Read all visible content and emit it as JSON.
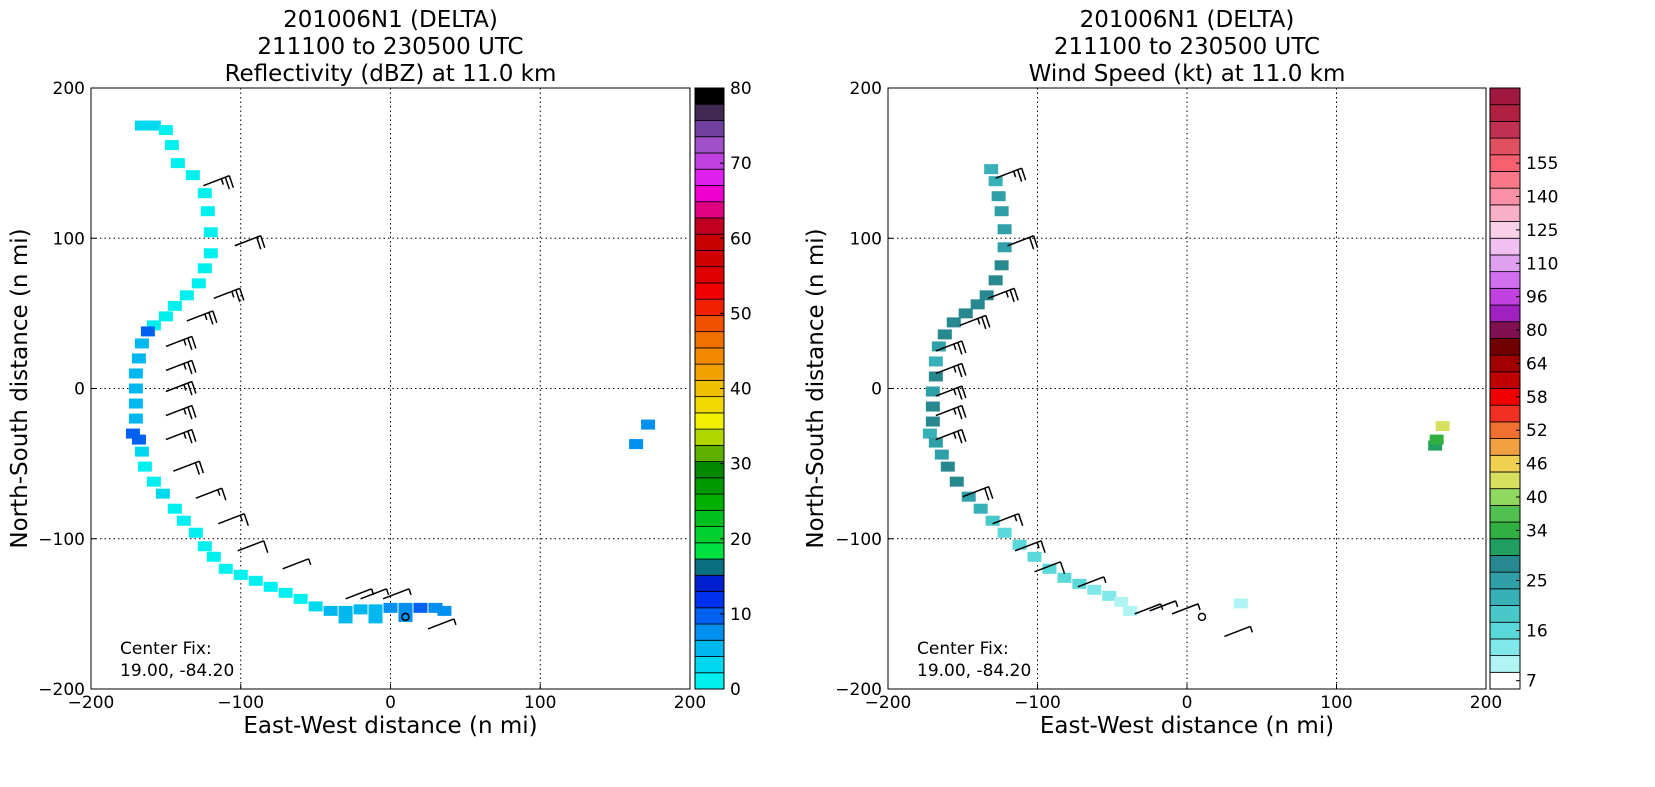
{
  "chart_data": [
    {
      "type": "heatmap",
      "title": [
        "201006N1 (DELTA)",
        "211100 to 230500 UTC",
        "Reflectivity (dBZ) at 11.0 km"
      ],
      "xlabel": "East-West distance (n mi)",
      "ylabel": "North-South distance (n mi)",
      "xlim": [
        -200,
        200
      ],
      "ylim": [
        -200,
        200
      ],
      "xticks": [
        -200,
        -100,
        0,
        100,
        200
      ],
      "yticks": [
        -200,
        -100,
        0,
        100,
        200
      ],
      "xtick_labels": [
        "−200",
        "−100",
        "0",
        "100",
        "200"
      ],
      "ytick_labels": [
        "−200",
        "−100",
        "0",
        "100",
        "200"
      ],
      "grid": true,
      "annotation": [
        "Center Fix:",
        "19.00, -84.20"
      ],
      "center_fix": [
        10,
        -152
      ],
      "colorbar": {
        "min": 0,
        "max": 80,
        "step": 2.5,
        "tick_values": [
          0,
          10,
          20,
          30,
          40,
          50,
          60,
          70,
          80
        ],
        "tick_labels": [
          "0",
          "10",
          "20",
          "30",
          "40",
          "50",
          "60",
          "70",
          "80"
        ],
        "colors": [
          "#00f0f0",
          "#00d8f0",
          "#00b8f0",
          "#0090f0",
          "#0060f0",
          "#0030f0",
          "#0020d0",
          "#087080",
          "#00e040",
          "#00d030",
          "#00c020",
          "#00b000",
          "#009800",
          "#008800",
          "#60b000",
          "#b0d800",
          "#f0f000",
          "#f0d800",
          "#f0c000",
          "#f0a000",
          "#f08800",
          "#f07000",
          "#f05000",
          "#f02000",
          "#f00000",
          "#e00000",
          "#d00000",
          "#c80000",
          "#c00020",
          "#e00080",
          "#f000d0",
          "#e020f0",
          "#c040e0",
          "#a050c8",
          "#7040a0",
          "#402850",
          "#000000"
        ]
      },
      "cells": [
        [
          -166,
          175,
          "#00d8f0"
        ],
        [
          -158,
          175,
          "#00d8f0"
        ],
        [
          -150,
          172,
          "#00f0f0"
        ],
        [
          -146,
          162,
          "#00f0f0"
        ],
        [
          -142,
          150,
          "#00f0f0"
        ],
        [
          -132,
          142,
          "#00f0f0"
        ],
        [
          -124,
          130,
          "#00f0f0"
        ],
        [
          -122,
          118,
          "#00f0f0"
        ],
        [
          -120,
          104,
          "#00f0f0"
        ],
        [
          -120,
          90,
          "#00f0f0"
        ],
        [
          -124,
          80,
          "#00f0f0"
        ],
        [
          -128,
          70,
          "#00f0f0"
        ],
        [
          -136,
          62,
          "#00f0f0"
        ],
        [
          -144,
          55,
          "#00f0f0"
        ],
        [
          -150,
          48,
          "#00f0f0"
        ],
        [
          -158,
          42,
          "#00f0f0"
        ],
        [
          -162,
          38,
          "#0060f0"
        ],
        [
          -166,
          30,
          "#00b8f0"
        ],
        [
          -168,
          20,
          "#00b8f0"
        ],
        [
          -170,
          10,
          "#00b8f0"
        ],
        [
          -170,
          0,
          "#00b8f0"
        ],
        [
          -170,
          -10,
          "#00b8f0"
        ],
        [
          -170,
          -20,
          "#00b8f0"
        ],
        [
          -172,
          -30,
          "#0060f0"
        ],
        [
          -168,
          -34,
          "#0060f0"
        ],
        [
          -166,
          -42,
          "#00d8f0"
        ],
        [
          -164,
          -52,
          "#00f0f0"
        ],
        [
          -158,
          -62,
          "#00f0f0"
        ],
        [
          -152,
          -70,
          "#00d8f0"
        ],
        [
          -144,
          -80,
          "#00f0f0"
        ],
        [
          -138,
          -88,
          "#00f0f0"
        ],
        [
          -130,
          -96,
          "#00f0f0"
        ],
        [
          -124,
          -105,
          "#00f0f0"
        ],
        [
          -118,
          -112,
          "#00f0f0"
        ],
        [
          -110,
          -120,
          "#00f0f0"
        ],
        [
          -100,
          -124,
          "#00f0f0"
        ],
        [
          -90,
          -128,
          "#00f0f0"
        ],
        [
          -80,
          -132,
          "#00f0f0"
        ],
        [
          -70,
          -136,
          "#00f0f0"
        ],
        [
          -60,
          -140,
          "#00f0f0"
        ],
        [
          -50,
          -145,
          "#00d8f0"
        ],
        [
          -40,
          -148,
          "#00b8f0"
        ],
        [
          -30,
          -148,
          "#00b8f0"
        ],
        [
          -20,
          -147,
          "#00b8f0"
        ],
        [
          -10,
          -147,
          "#00b8f0"
        ],
        [
          0,
          -146,
          "#0090f0"
        ],
        [
          10,
          -146,
          "#0090f0"
        ],
        [
          20,
          -146,
          "#0060f0"
        ],
        [
          30,
          -146,
          "#0090f0"
        ],
        [
          36,
          -148,
          "#0090f0"
        ],
        [
          -30,
          -153,
          "#00b8f0"
        ],
        [
          -10,
          -153,
          "#00b8f0"
        ],
        [
          10,
          -152,
          "#0090f0"
        ],
        [
          164,
          -37,
          "#0090f0"
        ],
        [
          172,
          -24,
          "#0090f0"
        ]
      ],
      "barbs": [
        [
          -125,
          135,
          "2.5"
        ],
        [
          -104,
          95,
          "2"
        ],
        [
          -118,
          60,
          "2.5"
        ],
        [
          -136,
          45,
          "2.5"
        ],
        [
          -150,
          28,
          "2.5"
        ],
        [
          -150,
          12,
          "2.5"
        ],
        [
          -150,
          -2,
          "2.5"
        ],
        [
          -150,
          -18,
          "2.5"
        ],
        [
          -150,
          -34,
          "2.5"
        ],
        [
          -145,
          -55,
          "2"
        ],
        [
          -130,
          -73,
          "1.5"
        ],
        [
          -115,
          -90,
          "1.5"
        ],
        [
          -102,
          -108,
          "1"
        ],
        [
          -72,
          -120,
          "0.5"
        ],
        [
          -30,
          -140,
          "0.5"
        ],
        [
          -20,
          -140,
          "0.5"
        ],
        [
          -5,
          -140,
          "0.5"
        ],
        [
          25,
          -160,
          "0.5"
        ]
      ]
    },
    {
      "type": "heatmap",
      "title": [
        "201006N1 (DELTA)",
        "211100 to 230500 UTC",
        "Wind Speed (kt) at 11.0 km"
      ],
      "xlabel": "East-West distance (n mi)",
      "ylabel": "North-South distance (n mi)",
      "xlim": [
        -200,
        200
      ],
      "ylim": [
        -200,
        200
      ],
      "xticks": [
        -200,
        -100,
        0,
        100,
        200
      ],
      "yticks": [
        -200,
        -100,
        0,
        100,
        200
      ],
      "xtick_labels": [
        "−200",
        "−100",
        "0",
        "100",
        "200"
      ],
      "ytick_labels": [
        "−200",
        "−100",
        "0",
        "100",
        "200"
      ],
      "grid": true,
      "annotation": [
        "Center Fix:",
        "19.00, -84.20"
      ],
      "center_fix": [
        10,
        -152
      ],
      "colorbar": {
        "tick_labels": [
          "7",
          "16",
          "25",
          "34",
          "40",
          "46",
          "52",
          "58",
          "64",
          "80",
          "96",
          "110",
          "125",
          "140",
          "155"
        ],
        "tick_index": [
          0,
          3,
          6,
          9,
          11,
          13,
          15,
          17,
          19,
          21,
          23,
          25,
          27,
          29,
          31
        ],
        "colors": [
          "#ffffff",
          "#b0f4f4",
          "#80e8e8",
          "#58d8d8",
          "#48c8c8",
          "#38b0b8",
          "#30a0a8",
          "#288890",
          "#20a060",
          "#30b040",
          "#50c050",
          "#90d860",
          "#d8e060",
          "#f0d050",
          "#f0a040",
          "#f07030",
          "#f03020",
          "#f00000",
          "#c00000",
          "#a00000",
          "#700000",
          "#801050",
          "#a020c0",
          "#c040e0",
          "#d070f0",
          "#e0a0f0",
          "#f0c0f0",
          "#f8d0e8",
          "#f8b0c8",
          "#f890a8",
          "#f87888",
          "#f86070",
          "#e05060",
          "#c03050",
          "#b02040",
          "#a01840"
        ]
      },
      "cells": [
        [
          -131,
          146,
          "#38b0b8"
        ],
        [
          -128,
          138,
          "#38b0b8"
        ],
        [
          -126,
          128,
          "#30a0a8"
        ],
        [
          -124,
          118,
          "#30a0a8"
        ],
        [
          -122,
          106,
          "#30a0a8"
        ],
        [
          -122,
          94,
          "#30a0a8"
        ],
        [
          -124,
          82,
          "#288890"
        ],
        [
          -128,
          72,
          "#288890"
        ],
        [
          -134,
          62,
          "#288890"
        ],
        [
          -140,
          56,
          "#288890"
        ],
        [
          -148,
          50,
          "#288890"
        ],
        [
          -156,
          44,
          "#288890"
        ],
        [
          -162,
          36,
          "#288890"
        ],
        [
          -166,
          28,
          "#30a0a8"
        ],
        [
          -168,
          18,
          "#38b0b8"
        ],
        [
          -168,
          8,
          "#288890"
        ],
        [
          -170,
          -2,
          "#30a0a8"
        ],
        [
          -170,
          -12,
          "#288890"
        ],
        [
          -170,
          -22,
          "#288890"
        ],
        [
          -172,
          -30,
          "#38b0b8"
        ],
        [
          -168,
          -36,
          "#30a0a8"
        ],
        [
          -164,
          -44,
          "#30a0a8"
        ],
        [
          -160,
          -52,
          "#288890"
        ],
        [
          -154,
          -62,
          "#288890"
        ],
        [
          -146,
          -72,
          "#30a0a8"
        ],
        [
          -138,
          -80,
          "#38b0b8"
        ],
        [
          -130,
          -88,
          "#48c8c8"
        ],
        [
          -122,
          -96,
          "#58d8d8"
        ],
        [
          -112,
          -104,
          "#58d8d8"
        ],
        [
          -102,
          -112,
          "#58d8d8"
        ],
        [
          -92,
          -120,
          "#58d8d8"
        ],
        [
          -82,
          -126,
          "#58d8d8"
        ],
        [
          -72,
          -130,
          "#58d8d8"
        ],
        [
          -62,
          -134,
          "#80e8e8"
        ],
        [
          -52,
          -138,
          "#80e8e8"
        ],
        [
          -44,
          -142,
          "#b0f4f4"
        ],
        [
          -38,
          -148,
          "#b0f4f4"
        ],
        [
          36,
          -143,
          "#b0f4f4"
        ],
        [
          166,
          -38,
          "#20a060"
        ],
        [
          167,
          -34,
          "#30b040"
        ],
        [
          171,
          -25,
          "#d8e060"
        ]
      ],
      "barbs": [
        [
          -128,
          140,
          "2.5"
        ],
        [
          -120,
          95,
          "2"
        ],
        [
          -133,
          60,
          "2.5"
        ],
        [
          -152,
          42,
          "2.5"
        ],
        [
          -168,
          25,
          "2.5"
        ],
        [
          -168,
          10,
          "2.5"
        ],
        [
          -168,
          -5,
          "2.5"
        ],
        [
          -168,
          -18,
          "2.5"
        ],
        [
          -168,
          -34,
          "2.5"
        ],
        [
          -150,
          -72,
          "2"
        ],
        [
          -130,
          -90,
          "1.5"
        ],
        [
          -115,
          -108,
          "1.5"
        ],
        [
          -102,
          -122,
          "1"
        ],
        [
          -73,
          -132,
          "0.5"
        ],
        [
          -35,
          -150,
          "0.5"
        ],
        [
          -25,
          -148,
          "0.5"
        ],
        [
          -10,
          -150,
          "0.5"
        ],
        [
          25,
          -165,
          "0.5"
        ]
      ]
    }
  ]
}
